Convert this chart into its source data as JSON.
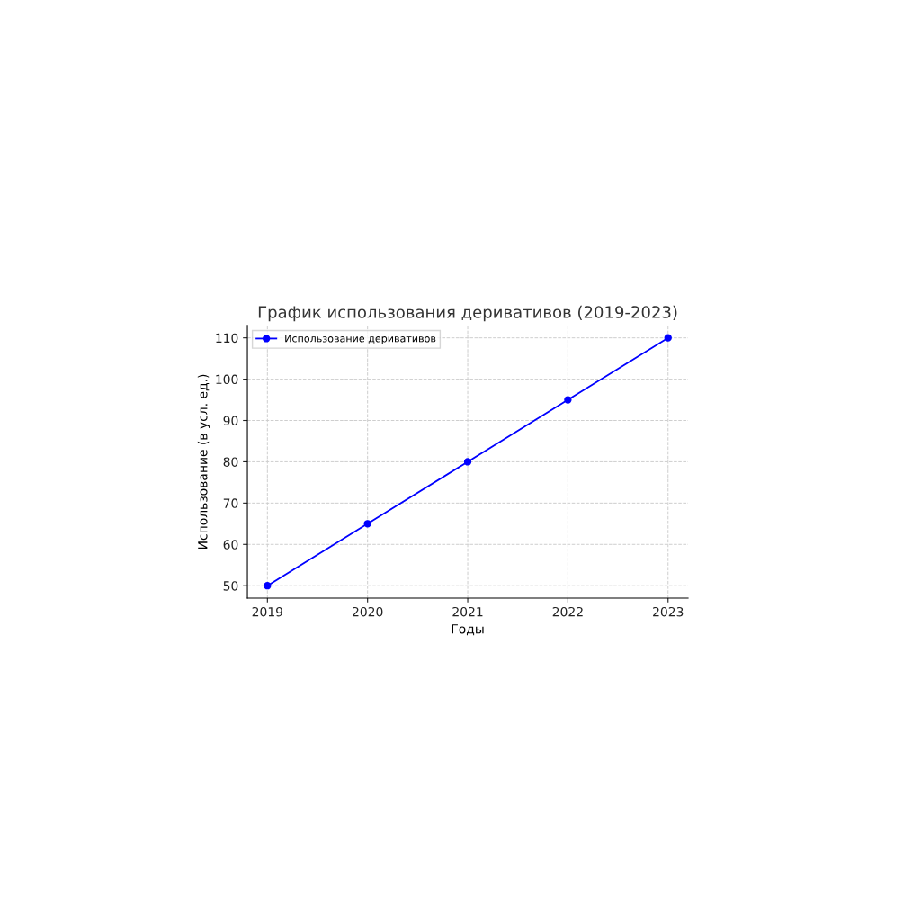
{
  "chart_data": {
    "type": "line",
    "title": "График использования деривативов (2019-2023)",
    "xlabel": "Годы",
    "ylabel": "Использование (в усл. ед.)",
    "x": [
      2019,
      2020,
      2021,
      2022,
      2023
    ],
    "series": [
      {
        "name": "Использование деривативов",
        "color": "#0000ff",
        "values": [
          50,
          65,
          80,
          95,
          110
        ]
      }
    ],
    "xlim": [
      2018.8,
      2023.2
    ],
    "xticks": [
      2019,
      2020,
      2021,
      2022,
      2023
    ],
    "ylim": [
      47,
      113
    ],
    "yticks": [
      50,
      60,
      70,
      80,
      90,
      100,
      110
    ],
    "grid": true,
    "legend": "top left",
    "marker": "circle",
    "line_style": "solid"
  }
}
